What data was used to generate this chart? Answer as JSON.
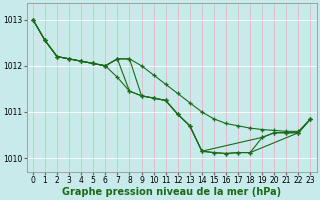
{
  "background_color": "#c8eaea",
  "grid_color": "#ffffff",
  "line_color": "#1a6b1a",
  "marker_color": "#1a6b1a",
  "xlabel": "Graphe pression niveau de la mer (hPa)",
  "xlabel_fontsize": 7,
  "yticks": [
    1010,
    1011,
    1012,
    1013
  ],
  "xticks": [
    0,
    1,
    2,
    3,
    4,
    5,
    6,
    7,
    8,
    9,
    10,
    11,
    12,
    13,
    14,
    15,
    16,
    17,
    18,
    19,
    20,
    21,
    22,
    23
  ],
  "xlim": [
    -0.5,
    23.5
  ],
  "ylim": [
    1009.7,
    1013.35
  ],
  "tick_fontsize": 5.5,
  "series": [
    {
      "x": [
        0,
        1,
        2,
        3,
        4,
        5,
        6,
        7,
        8,
        9,
        10,
        11,
        12,
        13,
        14,
        15,
        16,
        17,
        18,
        22,
        23
      ],
      "y": [
        1013.0,
        1012.55,
        1012.2,
        1012.15,
        1012.1,
        1012.05,
        1012.0,
        1011.75,
        1011.45,
        1011.35,
        1011.3,
        1011.25,
        1010.95,
        1010.7,
        1010.15,
        1010.12,
        1010.1,
        1010.12,
        1010.12,
        1010.55,
        1010.85
      ]
    },
    {
      "x": [
        0,
        1,
        2,
        3,
        4,
        5,
        6,
        7,
        8,
        9,
        10,
        11,
        12,
        13,
        14,
        15,
        16,
        17,
        18,
        19,
        20,
        21,
        22,
        23
      ],
      "y": [
        1013.0,
        1012.55,
        1012.2,
        1012.15,
        1012.1,
        1012.05,
        1012.0,
        1012.15,
        1011.45,
        1011.35,
        1011.3,
        1011.25,
        1010.95,
        1010.7,
        1010.15,
        1010.12,
        1010.1,
        1010.12,
        1010.12,
        1010.45,
        1010.55,
        1010.55,
        1010.55,
        1010.85
      ]
    },
    {
      "x": [
        0,
        1,
        2,
        3,
        4,
        5,
        6,
        7,
        8,
        9,
        10,
        11,
        12,
        13,
        14,
        19,
        20,
        21,
        22,
        23
      ],
      "y": [
        1013.0,
        1012.55,
        1012.2,
        1012.15,
        1012.1,
        1012.05,
        1012.0,
        1012.15,
        1012.15,
        1011.35,
        1011.3,
        1011.25,
        1010.95,
        1010.7,
        1010.15,
        1010.45,
        1010.55,
        1010.55,
        1010.55,
        1010.85
      ]
    },
    {
      "x": [
        0,
        1,
        2,
        3,
        4,
        5,
        6,
        7,
        8,
        9,
        10,
        11,
        12,
        13,
        14,
        15,
        16,
        17,
        18,
        19,
        20,
        21,
        22,
        23
      ],
      "y": [
        1013.0,
        1012.55,
        1012.2,
        1012.15,
        1012.1,
        1012.05,
        1012.0,
        1012.15,
        1012.15,
        1012.0,
        1011.8,
        1011.6,
        1011.4,
        1011.2,
        1011.0,
        1010.85,
        1010.75,
        1010.7,
        1010.65,
        1010.62,
        1010.6,
        1010.58,
        1010.58,
        1010.85
      ]
    }
  ]
}
